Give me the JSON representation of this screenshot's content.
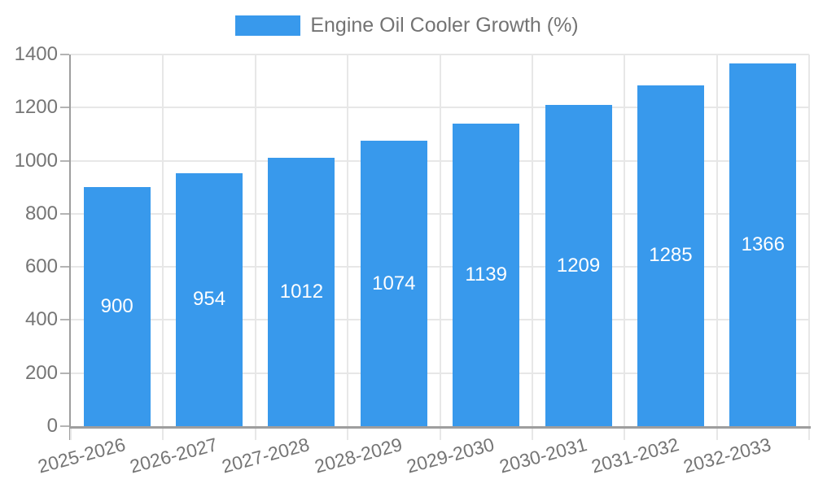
{
  "chart_data": {
    "type": "bar",
    "series_label": "Engine Oil Cooler Growth (%)",
    "categories": [
      "2025-2026",
      "2026-2027",
      "2027-2028",
      "2028-2029",
      "2029-2030",
      "2030-2031",
      "2031-2032",
      "2032-2033"
    ],
    "values": [
      900,
      954,
      1012,
      1074,
      1139,
      1209,
      1285,
      1366
    ],
    "xlabel": "",
    "ylabel": "",
    "ylim": [
      0,
      1400
    ],
    "yticks": [
      0,
      200,
      400,
      600,
      800,
      1000,
      1200,
      1400
    ],
    "grid": true,
    "legend_position": "top",
    "bar_labels_shown": true,
    "colors": {
      "bar": "#3899ec",
      "bar_label": "#ffffff",
      "grid": "#e7e7e7",
      "below_axis_tick": "#d4d4d4",
      "axis": "#9e9e9e",
      "y_tick": "#b4b4b4",
      "tick_label": "#757575",
      "legend_text": "#737373",
      "background": "#ffffff"
    }
  }
}
